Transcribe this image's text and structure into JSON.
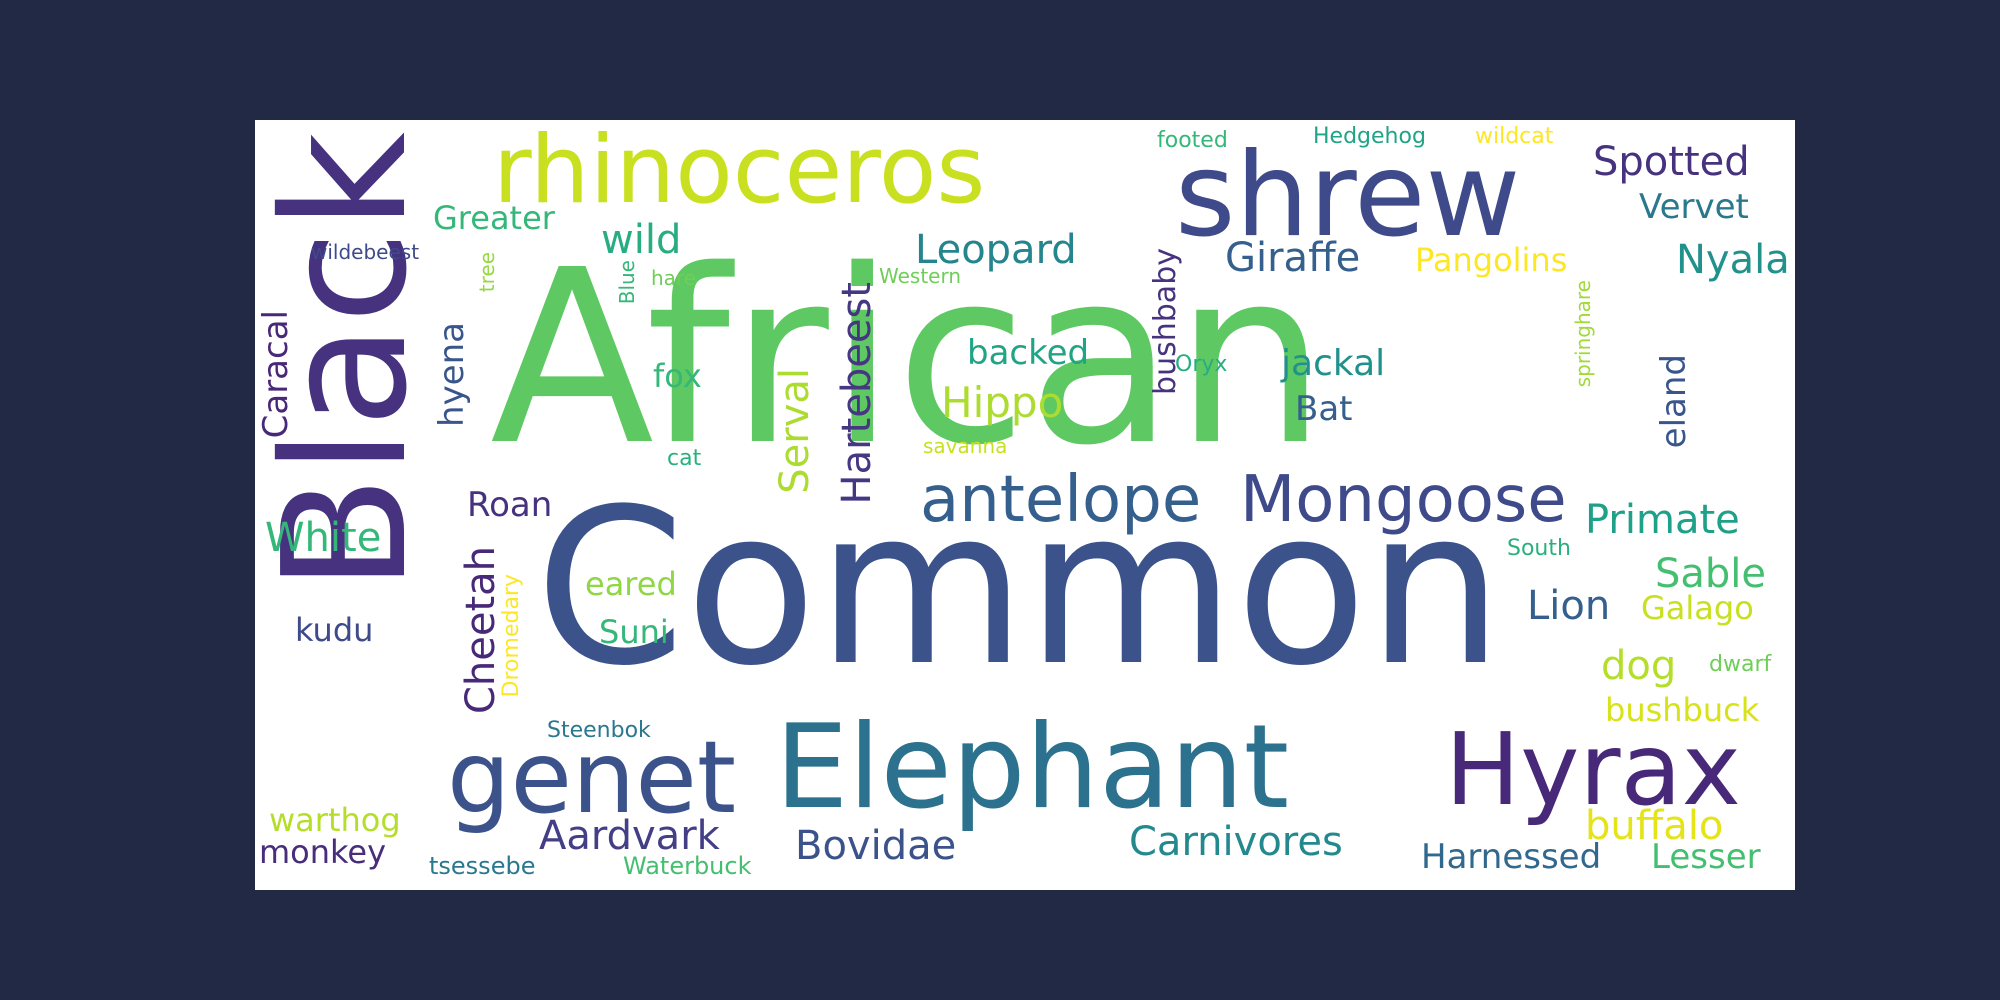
{
  "words": [
    {
      "text": "African",
      "color": "#5ec962"
    },
    {
      "text": "Common",
      "color": "#3b528b"
    },
    {
      "text": "Black",
      "color": "#46327e"
    },
    {
      "text": "rhinoceros",
      "color": "#c8e020"
    },
    {
      "text": "shrew",
      "color": "#3e4a89"
    },
    {
      "text": "Elephant",
      "color": "#2c728e"
    },
    {
      "text": "Hyrax",
      "color": "#482878"
    },
    {
      "text": "genet",
      "color": "#3b528b"
    },
    {
      "text": "antelope",
      "color": "#355f8d"
    },
    {
      "text": "Mongoose",
      "color": "#3e4a89"
    },
    {
      "text": "Spotted",
      "color": "#46327e"
    },
    {
      "text": "Vervet",
      "color": "#2a788e"
    },
    {
      "text": "Nyala",
      "color": "#21918c"
    },
    {
      "text": "Giraffe",
      "color": "#355f8d"
    },
    {
      "text": "Pangolins",
      "color": "#fde725"
    },
    {
      "text": "Leopard",
      "color": "#25858e"
    },
    {
      "text": "Greater",
      "color": "#35b779"
    },
    {
      "text": "wild",
      "color": "#27ad81"
    },
    {
      "text": "wildebeest",
      "color": "#3e4a89"
    },
    {
      "text": "footed",
      "color": "#35b779"
    },
    {
      "text": "Hedgehog",
      "color": "#20a486"
    },
    {
      "text": "wildcat",
      "color": "#fde725"
    },
    {
      "text": "hare",
      "color": "#6ece58"
    },
    {
      "text": "Western",
      "color": "#6ece58"
    },
    {
      "text": "backed",
      "color": "#20a486"
    },
    {
      "text": "fox",
      "color": "#35b779"
    },
    {
      "text": "Hippo",
      "color": "#addc30"
    },
    {
      "text": "jackal",
      "color": "#21918c"
    },
    {
      "text": "Bat",
      "color": "#355f8d"
    },
    {
      "text": "Oryx",
      "color": "#27ad81"
    },
    {
      "text": "savanna",
      "color": "#c8e020"
    },
    {
      "text": "cat",
      "color": "#2ab07f"
    },
    {
      "text": "Roan",
      "color": "#46327e"
    },
    {
      "text": "White",
      "color": "#35b779"
    },
    {
      "text": "Primate",
      "color": "#1fa088"
    },
    {
      "text": "South",
      "color": "#2ab07f"
    },
    {
      "text": "Sable",
      "color": "#44bf70"
    },
    {
      "text": "Lion",
      "color": "#355f8d"
    },
    {
      "text": "Galago",
      "color": "#c8e020"
    },
    {
      "text": "eared",
      "color": "#8fd744"
    },
    {
      "text": "Suni",
      "color": "#35b779"
    },
    {
      "text": "kudu",
      "color": "#3e4a89"
    },
    {
      "text": "dog",
      "color": "#b5de2b"
    },
    {
      "text": "dwarf",
      "color": "#6ece58"
    },
    {
      "text": "bushbuck",
      "color": "#d8e219"
    },
    {
      "text": "Steenbok",
      "color": "#2a788e"
    },
    {
      "text": "warthog",
      "color": "#b5de2b"
    },
    {
      "text": "monkey",
      "color": "#472d7b"
    },
    {
      "text": "Aardvark",
      "color": "#433e85"
    },
    {
      "text": "Bovidae",
      "color": "#3b528b"
    },
    {
      "text": "Carnivores",
      "color": "#23898e"
    },
    {
      "text": "buffalo",
      "color": "#e5e419"
    },
    {
      "text": "Harnessed",
      "color": "#31688e"
    },
    {
      "text": "Lesser",
      "color": "#44bf70"
    },
    {
      "text": "tsessebe",
      "color": "#2a788e"
    },
    {
      "text": "Waterbuck",
      "color": "#44bf70"
    },
    {
      "text": "Caracal",
      "color": "#482878"
    },
    {
      "text": "hyena",
      "color": "#39568c"
    },
    {
      "text": "Serval",
      "color": "#addc30"
    },
    {
      "text": "Hartebeest",
      "color": "#453781"
    },
    {
      "text": "Cheetah",
      "color": "#482878"
    },
    {
      "text": "Dromedary",
      "color": "#fde725"
    },
    {
      "text": "bushbaby",
      "color": "#46327e"
    },
    {
      "text": "eland",
      "color": "#39568c"
    },
    {
      "text": "springhare",
      "color": "#a0da39"
    },
    {
      "text": "tree",
      "color": "#95d840"
    },
    {
      "text": "Blue",
      "color": "#35b779"
    }
  ]
}
